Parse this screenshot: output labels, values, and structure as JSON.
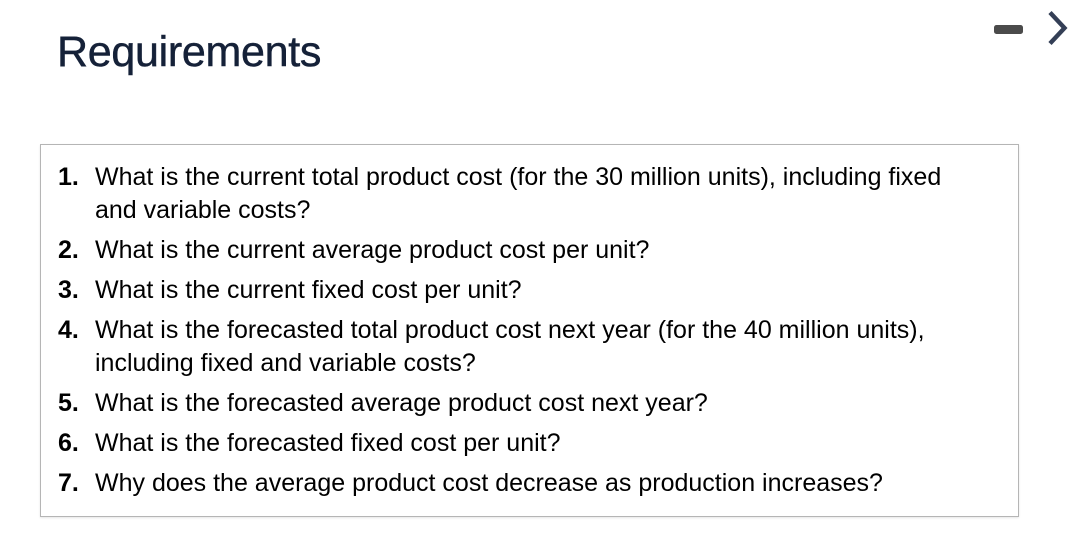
{
  "header": {
    "title": "Requirements"
  },
  "controls": {
    "minimize_icon": "minus-icon",
    "collapse_icon": "chevron-right-icon"
  },
  "colors": {
    "title_text": "#152138",
    "body_text": "#000000",
    "minus_icon": "#4b4b4b",
    "chevron_icon": "#343f56",
    "box_border": "#b5b5b5",
    "background": "#ffffff"
  },
  "requirements": {
    "items": [
      {
        "number": "1.",
        "text": "What is the current total product cost (for the 30 million units), including fixed and variable costs?"
      },
      {
        "number": "2.",
        "text": "What is the current average product cost per unit?"
      },
      {
        "number": "3.",
        "text": "What is the current fixed cost per unit?"
      },
      {
        "number": "4.",
        "text": "What is the forecasted total product cost next year (for the 40 million units), including fixed and variable costs?"
      },
      {
        "number": "5.",
        "text": "What is the forecasted average product cost next year?"
      },
      {
        "number": "6.",
        "text": "What is the forecasted fixed cost per unit?"
      },
      {
        "number": "7.",
        "text": "Why does the average product cost decrease as production increases?"
      }
    ]
  }
}
